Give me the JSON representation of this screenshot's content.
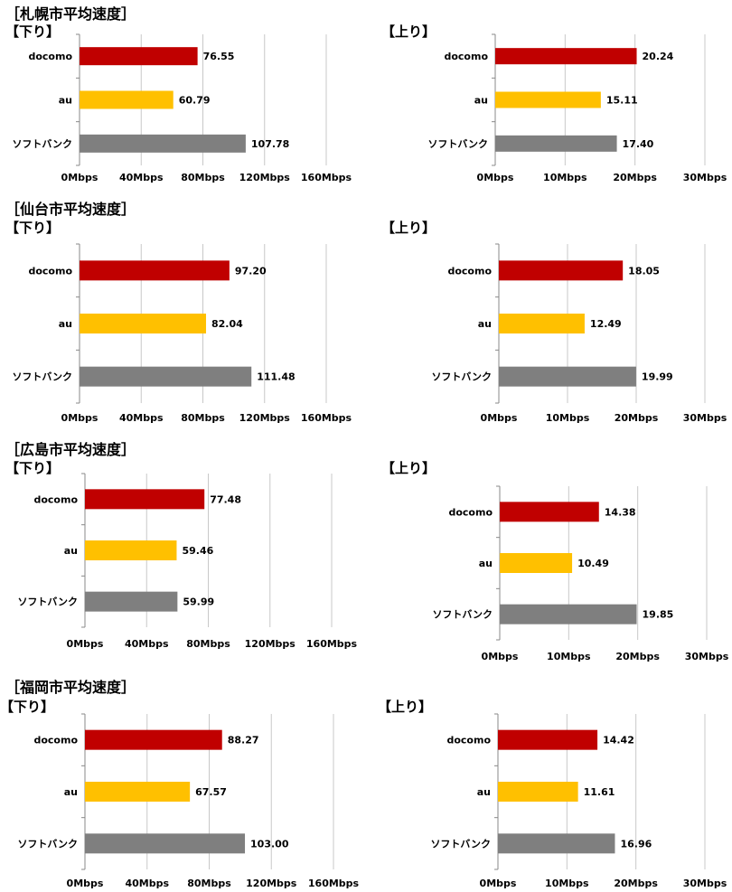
{
  "sections": [
    {
      "title": "［札幌市平均速度］",
      "down": {
        "label": "【下り】",
        "chart_data": {
          "type": "bar",
          "orientation": "horizontal",
          "categories": [
            "docomo",
            "au",
            "ソフトバンク"
          ],
          "values": [
            76.55,
            60.79,
            107.78
          ],
          "value_labels": [
            "76.55",
            "60.79",
            "107.78"
          ],
          "colors": [
            "#c00000",
            "#ffc000",
            "#7f7f7f"
          ],
          "xlim": [
            0,
            160
          ],
          "ticks": [
            "0Mbps",
            "40Mbps",
            "80Mbps",
            "120Mbps",
            "160Mbps"
          ]
        }
      },
      "up": {
        "label": "【上り】",
        "chart_data": {
          "type": "bar",
          "orientation": "horizontal",
          "categories": [
            "docomo",
            "au",
            "ソフトバンク"
          ],
          "values": [
            20.24,
            15.11,
            17.4
          ],
          "value_labels": [
            "20.24",
            "15.11",
            "17.40"
          ],
          "colors": [
            "#c00000",
            "#ffc000",
            "#7f7f7f"
          ],
          "xlim": [
            0,
            30
          ],
          "ticks": [
            "0Mbps",
            "10Mbps",
            "20Mbps",
            "30Mbps"
          ]
        }
      }
    },
    {
      "title": "［仙台市平均速度］",
      "down": {
        "label": "【下り】",
        "chart_data": {
          "type": "bar",
          "orientation": "horizontal",
          "categories": [
            "docomo",
            "au",
            "ソフトバンク"
          ],
          "values": [
            97.2,
            82.04,
            111.48
          ],
          "value_labels": [
            "97.20",
            "82.04",
            "111.48"
          ],
          "colors": [
            "#c00000",
            "#ffc000",
            "#7f7f7f"
          ],
          "xlim": [
            0,
            160
          ],
          "ticks": [
            "0Mbps",
            "40Mbps",
            "80Mbps",
            "120Mbps",
            "160Mbps"
          ]
        }
      },
      "up": {
        "label": "【上り】",
        "chart_data": {
          "type": "bar",
          "orientation": "horizontal",
          "categories": [
            "docomo",
            "au",
            "ソフトバンク"
          ],
          "values": [
            18.05,
            12.49,
            19.99
          ],
          "value_labels": [
            "18.05",
            "12.49",
            "19.99"
          ],
          "colors": [
            "#c00000",
            "#ffc000",
            "#7f7f7f"
          ],
          "xlim": [
            0,
            30
          ],
          "ticks": [
            "0Mbps",
            "10Mbps",
            "20Mbps",
            "30Mbps"
          ]
        }
      }
    },
    {
      "title": "［広島市平均速度］",
      "down": {
        "label": "【下り】",
        "chart_data": {
          "type": "bar",
          "orientation": "horizontal",
          "categories": [
            "docomo",
            "au",
            "ソフトバンク"
          ],
          "values": [
            77.48,
            59.46,
            59.99
          ],
          "value_labels": [
            "77.48",
            "59.46",
            "59.99"
          ],
          "colors": [
            "#c00000",
            "#ffc000",
            "#7f7f7f"
          ],
          "xlim": [
            0,
            160
          ],
          "ticks": [
            "0Mbps",
            "40Mbps",
            "80Mbps",
            "120Mbps",
            "160Mbps"
          ]
        }
      },
      "up": {
        "label": "【上り】",
        "chart_data": {
          "type": "bar",
          "orientation": "horizontal",
          "categories": [
            "docomo",
            "au",
            "ソフトバンク"
          ],
          "values": [
            14.38,
            10.49,
            19.85
          ],
          "value_labels": [
            "14.38",
            "10.49",
            "19.85"
          ],
          "colors": [
            "#c00000",
            "#ffc000",
            "#7f7f7f"
          ],
          "xlim": [
            0,
            30
          ],
          "ticks": [
            "0Mbps",
            "10Mbps",
            "20Mbps",
            "30Mbps"
          ]
        }
      }
    },
    {
      "title": "［福岡市平均速度］",
      "down": {
        "label": "【下り】",
        "chart_data": {
          "type": "bar",
          "orientation": "horizontal",
          "categories": [
            "docomo",
            "au",
            "ソフトバンク"
          ],
          "values": [
            88.27,
            67.57,
            103.0
          ],
          "value_labels": [
            "88.27",
            "67.57",
            "103.00"
          ],
          "colors": [
            "#c00000",
            "#ffc000",
            "#7f7f7f"
          ],
          "xlim": [
            0,
            160
          ],
          "ticks": [
            "0Mbps",
            "40Mbps",
            "80Mbps",
            "120Mbps",
            "160Mbps"
          ]
        }
      },
      "up": {
        "label": "【上り】",
        "chart_data": {
          "type": "bar",
          "orientation": "horizontal",
          "categories": [
            "docomo",
            "au",
            "ソフトバンク"
          ],
          "values": [
            14.42,
            11.61,
            16.96
          ],
          "value_labels": [
            "14.42",
            "11.61",
            "16.96"
          ],
          "colors": [
            "#c00000",
            "#ffc000",
            "#7f7f7f"
          ],
          "xlim": [
            0,
            30
          ],
          "ticks": [
            "0Mbps",
            "10Mbps",
            "20Mbps",
            "30Mbps"
          ]
        }
      }
    }
  ]
}
